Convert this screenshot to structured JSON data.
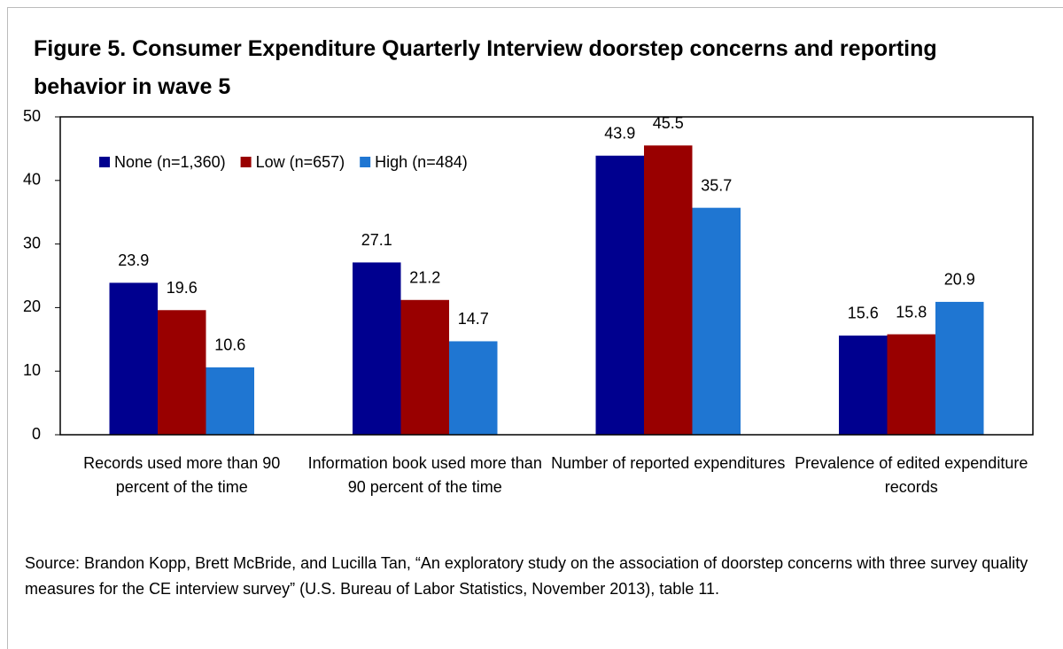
{
  "chart_data": {
    "type": "bar",
    "title": "Figure 5. Consumer Expenditure Quarterly Interview doorstep concerns and reporting behavior in wave 5",
    "categories": [
      "Records used more than 90 percent of the time",
      "Information book used more than 90 percent of the time",
      "Number of reported expenditures",
      "Prevalence of edited expenditure records"
    ],
    "series": [
      {
        "name": "None (n=1,360)",
        "color": "#00008f",
        "values": [
          23.9,
          27.1,
          43.9,
          15.6
        ]
      },
      {
        "name": "Low (n=657)",
        "color": "#990000",
        "values": [
          19.6,
          21.2,
          45.5,
          15.8
        ]
      },
      {
        "name": "High (n=484)",
        "color": "#1f76d2",
        "values": [
          10.6,
          14.7,
          35.7,
          20.9
        ]
      }
    ],
    "ylim": [
      0,
      50
    ],
    "yticks": [
      0,
      10,
      20,
      30,
      40,
      50
    ],
    "legend": "upper left",
    "source": "Source: Brandon Kopp, Brett McBride, and Lucilla Tan, “An exploratory study on the association of doorstep concerns with three survey quality measures for the CE interview survey” (U.S. Bureau of Labor Statistics, November 2013), table 11."
  }
}
